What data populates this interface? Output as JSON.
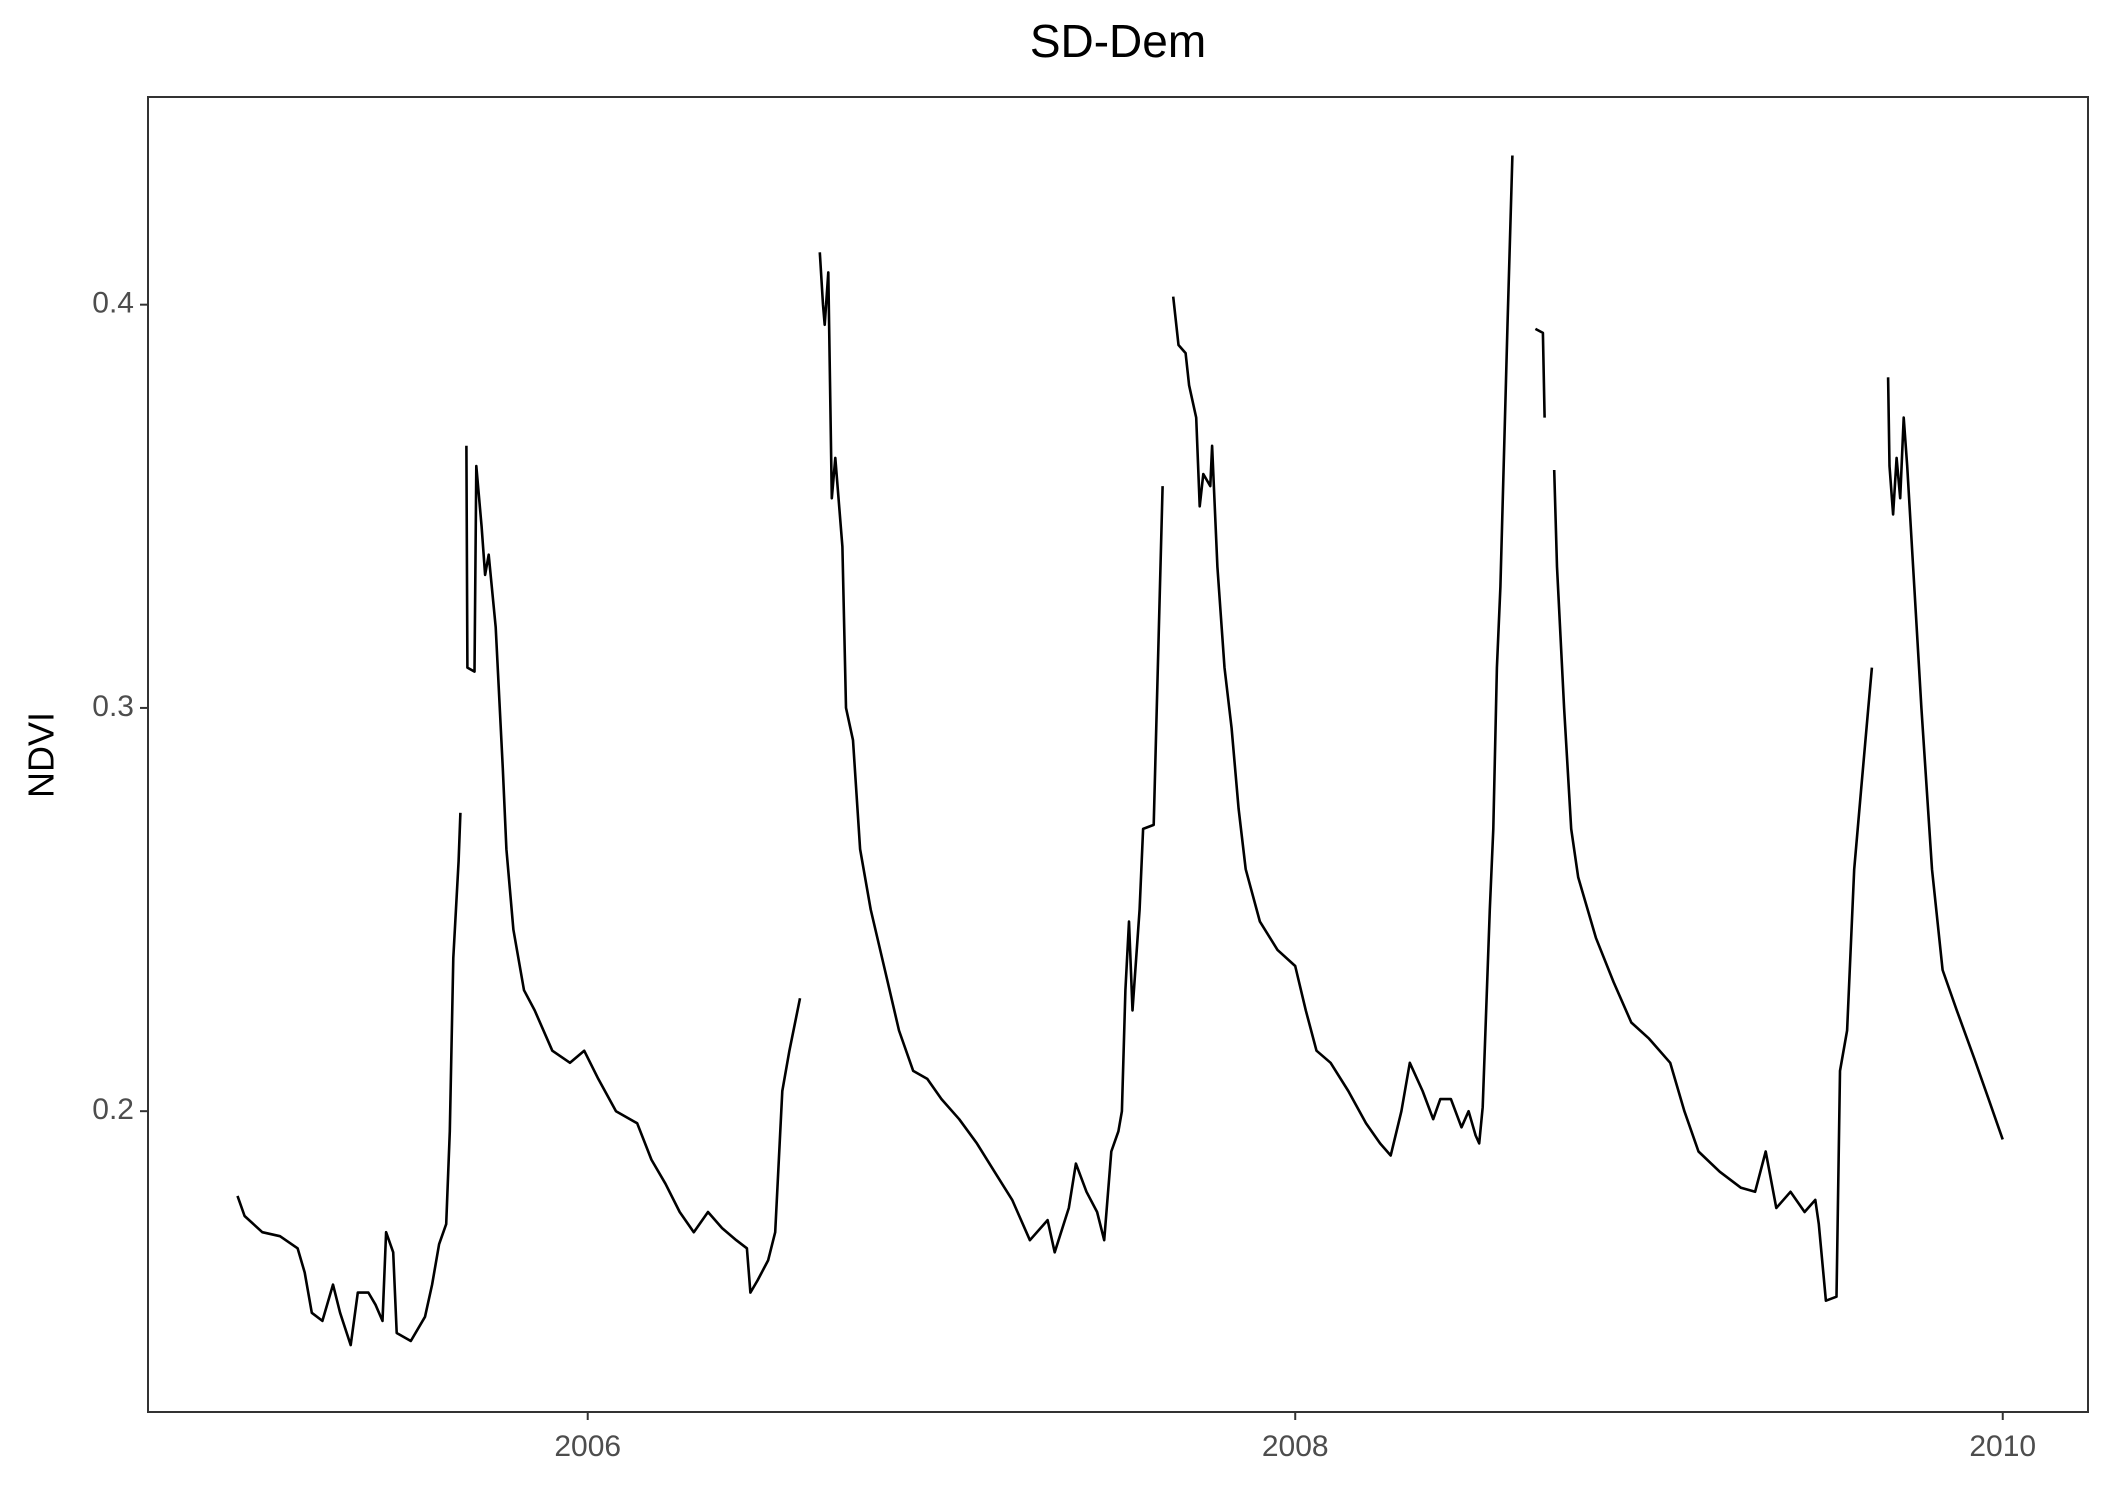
{
  "chart_data": {
    "type": "line",
    "title": "SD-Dem",
    "y_label": "NDVI",
    "xlim": [
      2004.757,
      2010.241
    ],
    "xticks": [
      2006,
      2008,
      2010
    ],
    "ylim": [
      0.1254,
      0.4515
    ],
    "yticks": [
      0.2,
      0.3,
      0.4
    ],
    "grid": false,
    "x": [
      2005.01,
      2005.03,
      2005.08,
      2005.13,
      2005.18,
      2005.2,
      2005.22,
      2005.25,
      2005.28,
      2005.3,
      2005.33,
      2005.35,
      2005.38,
      2005.4,
      2005.42,
      2005.43,
      2005.45,
      2005.46,
      2005.5,
      2005.54,
      2005.56,
      2005.58,
      2005.6,
      2005.61,
      2005.62,
      2005.635,
      2005.64,
      null,
      2005.657,
      2005.66,
      2005.68,
      2005.685,
      2005.7,
      2005.71,
      2005.72,
      2005.74,
      2005.76,
      2005.77,
      2005.79,
      2005.82,
      2005.85,
      2005.9,
      2005.95,
      2005.99,
      2006.03,
      2006.08,
      2006.14,
      2006.18,
      2006.22,
      2006.26,
      2006.3,
      2006.34,
      2006.38,
      2006.42,
      2006.45,
      2006.46,
      2006.48,
      2006.51,
      2006.53,
      2006.55,
      2006.57,
      2006.6,
      null,
      2006.656,
      2006.665,
      2006.67,
      2006.68,
      2006.69,
      2006.7,
      2006.72,
      2006.73,
      2006.75,
      2006.77,
      2006.8,
      2006.84,
      2006.88,
      2006.92,
      2006.96,
      2007,
      2007.05,
      2007.1,
      2007.15,
      2007.2,
      2007.25,
      2007.3,
      2007.32,
      2007.36,
      2007.38,
      2007.41,
      2007.44,
      2007.46,
      2007.48,
      2007.5,
      2007.51,
      2007.52,
      2007.53,
      2007.54,
      2007.56,
      2007.57,
      2007.6,
      2007.625,
      null,
      2007.655,
      2007.67,
      2007.69,
      2007.7,
      2007.72,
      2007.73,
      2007.74,
      2007.76,
      2007.765,
      2007.78,
      2007.8,
      2007.82,
      2007.84,
      2007.86,
      2007.9,
      2007.95,
      2008,
      2008.03,
      2008.06,
      2008.1,
      2008.15,
      2008.2,
      2008.24,
      2008.27,
      2008.3,
      2008.324,
      2008.36,
      2008.39,
      2008.41,
      2008.44,
      2008.47,
      2008.49,
      2008.51,
      2008.52,
      2008.53,
      2008.55,
      2008.56,
      2008.57,
      2008.58,
      2008.6,
      2008.614,
      null,
      2008.679,
      2008.7,
      2008.705,
      null,
      2008.732,
      2008.74,
      2008.76,
      2008.78,
      2008.8,
      2008.85,
      2008.9,
      2008.95,
      2009,
      2009.06,
      2009.1,
      2009.14,
      2009.2,
      2009.26,
      2009.3,
      2009.33,
      2009.36,
      2009.4,
      2009.44,
      2009.47,
      2009.48,
      2009.5,
      2009.53,
      2009.54,
      2009.56,
      2009.58,
      2009.6,
      2009.62,
      2009.63,
      null,
      2009.676,
      2009.68,
      2009.69,
      2009.7,
      2009.71,
      2009.72,
      2009.73,
      2009.75,
      2009.77,
      2009.8,
      2009.83,
      2009.87,
      2009.92,
      2009.96,
      2010
    ],
    "series": [
      {
        "color": "#000000",
        "values": [
          0.179,
          0.174,
          0.17,
          0.169,
          0.166,
          0.16,
          0.15,
          0.148,
          0.157,
          0.15,
          0.142,
          0.155,
          0.155,
          0.152,
          0.148,
          0.17,
          0.165,
          0.145,
          0.143,
          0.149,
          0.157,
          0.167,
          0.172,
          0.195,
          0.238,
          0.262,
          0.274,
          null,
          0.365,
          0.31,
          0.309,
          0.36,
          0.345,
          0.333,
          0.338,
          0.32,
          0.285,
          0.265,
          0.245,
          0.23,
          0.225,
          0.215,
          0.212,
          0.215,
          0.208,
          0.2,
          0.197,
          0.188,
          0.182,
          0.175,
          0.17,
          0.175,
          0.171,
          0.168,
          0.166,
          0.155,
          0.158,
          0.163,
          0.17,
          0.205,
          0.215,
          0.228,
          null,
          0.413,
          0.4,
          0.395,
          0.408,
          0.352,
          0.362,
          0.34,
          0.3,
          0.292,
          0.265,
          0.25,
          0.235,
          0.22,
          0.21,
          0.208,
          0.203,
          0.198,
          0.192,
          0.185,
          0.178,
          0.168,
          0.173,
          0.165,
          0.176,
          0.187,
          0.18,
          0.175,
          0.168,
          0.19,
          0.195,
          0.2,
          0.23,
          0.247,
          0.225,
          0.25,
          0.27,
          0.271,
          0.355,
          null,
          0.402,
          0.39,
          0.388,
          0.38,
          0.372,
          0.35,
          0.358,
          0.355,
          0.365,
          0.335,
          0.31,
          0.295,
          0.275,
          0.26,
          0.247,
          0.24,
          0.236,
          0.225,
          0.215,
          0.212,
          0.205,
          0.197,
          0.192,
          0.189,
          0.2,
          0.212,
          0.205,
          0.198,
          0.203,
          0.203,
          0.196,
          0.2,
          0.194,
          0.192,
          0.201,
          0.25,
          0.27,
          0.31,
          0.33,
          0.395,
          0.437,
          null,
          0.394,
          0.393,
          0.372,
          null,
          0.359,
          0.335,
          0.3,
          0.27,
          0.258,
          0.243,
          0.232,
          0.222,
          0.218,
          0.212,
          0.2,
          0.19,
          0.185,
          0.181,
          0.18,
          0.19,
          0.176,
          0.18,
          0.175,
          0.178,
          0.172,
          0.153,
          0.154,
          0.21,
          0.22,
          0.26,
          0.28,
          0.3,
          0.31,
          null,
          0.382,
          0.36,
          0.348,
          0.362,
          0.352,
          0.372,
          0.36,
          0.33,
          0.3,
          0.26,
          0.235,
          0.225,
          0.213,
          0.203,
          0.193
        ]
      }
    ]
  }
}
